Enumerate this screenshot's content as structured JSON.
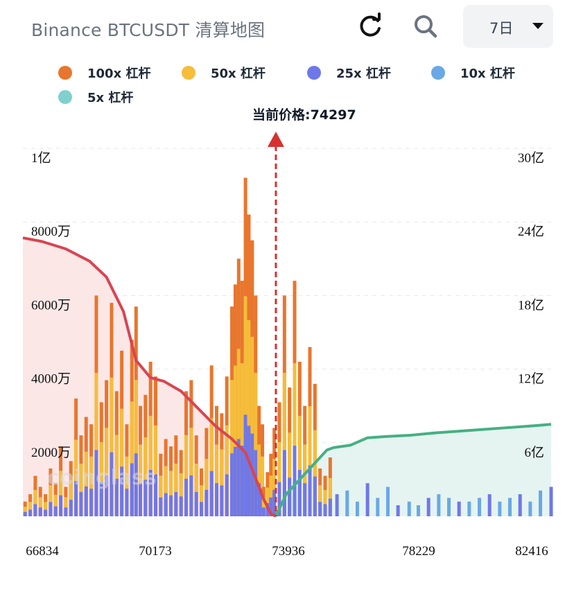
{
  "header": {
    "title": "Binance BTCUSDT 清算地图",
    "refresh_icon": "refresh-icon",
    "search_icon": "search-icon",
    "range_value": "7日"
  },
  "legend": [
    {
      "label": "100x 杠杆",
      "color": "#e8762d"
    },
    {
      "label": "50x 杠杆",
      "color": "#f5bd3a"
    },
    {
      "label": "25x 杠杆",
      "color": "#6f78e8"
    },
    {
      "label": "10x 杠杆",
      "color": "#6aa8e6"
    },
    {
      "label": "5x 杠杆",
      "color": "#7fd0cf"
    }
  ],
  "current_price_label": "当前价格:74297",
  "watermark": "coinglass",
  "chart_data": {
    "type": "bar",
    "xlim": [
      66834,
      82416
    ],
    "x_ticks": [
      "66834",
      "70173",
      "73936",
      "78229",
      "82416"
    ],
    "left_axis": {
      "label_ticks": [
        "1亿",
        "8000万",
        "6000万",
        "4000万",
        "2000万"
      ],
      "values": [
        100000000,
        80000000,
        60000000,
        40000000,
        20000000
      ],
      "ylim": [
        0,
        100000000
      ]
    },
    "right_axis": {
      "label_ticks": [
        "30亿",
        "24亿",
        "18亿",
        "12亿",
        "6亿"
      ],
      "values": [
        3000000000,
        2400000000,
        1800000000,
        1200000000,
        600000000
      ],
      "ylim": [
        0,
        3000000000
      ]
    },
    "current_price": 74297,
    "bars_top_color": "#e8762d",
    "bars_mid_color": "#f5bd3a",
    "bars_low_color": "#6f78e8",
    "bars_right_color": "#6aa8e6",
    "long_cumulative": {
      "name": "",
      "color": "#d94450",
      "x": [
        66834,
        67400,
        68100,
        68800,
        69300,
        69800,
        70173,
        70600,
        71000,
        71500,
        72000,
        72500,
        73000,
        73400,
        73700,
        73936,
        74150,
        74297
      ],
      "y": [
        2270000000,
        2240000000,
        2180000000,
        2080000000,
        1950000000,
        1670000000,
        1270000000,
        1130000000,
        1100000000,
        1020000000,
        880000000,
        740000000,
        630000000,
        520000000,
        310000000,
        140000000,
        20000000,
        0
      ]
    },
    "short_cumulative": {
      "name": "",
      "color": "#45b083",
      "x": [
        74297,
        74600,
        75000,
        75300,
        75800,
        76000,
        76500,
        77000,
        77500,
        78229,
        79000,
        80000,
        81000,
        82000,
        82416
      ],
      "y": [
        0,
        180000000,
        300000000,
        390000000,
        540000000,
        560000000,
        580000000,
        640000000,
        650000000,
        660000000,
        680000000,
        700000000,
        720000000,
        740000000,
        750000000
      ]
    },
    "bars": {
      "x": [
        66900,
        67050,
        67200,
        67350,
        67500,
        67650,
        67800,
        67950,
        68100,
        68250,
        68400,
        68550,
        68700,
        68850,
        69000,
        69150,
        69300,
        69450,
        69600,
        69750,
        69900,
        70050,
        70173,
        70300,
        70450,
        70600,
        70750,
        70900,
        71050,
        71200,
        71350,
        71500,
        71650,
        71800,
        71950,
        72100,
        72250,
        72400,
        72550,
        72700,
        72850,
        73000,
        73100,
        73200,
        73300,
        73400,
        73500,
        73600,
        73700,
        73800,
        73900,
        73936,
        74050,
        74150,
        74250,
        74400,
        74550,
        74700,
        74850,
        75000,
        75150,
        75300,
        75450,
        75600,
        75750,
        75900,
        76100,
        76400,
        76700,
        77000,
        77300,
        77600,
        77900,
        78229,
        78500,
        78800,
        79100,
        79400,
        79700,
        80000,
        80300,
        80600,
        80900,
        81200,
        81500,
        81800,
        82100,
        82416
      ],
      "values": [
        4000000,
        6000000,
        11000000,
        8000000,
        6000000,
        13000000,
        9000000,
        19000000,
        8000000,
        15000000,
        32000000,
        22000000,
        27000000,
        25000000,
        60000000,
        31000000,
        37000000,
        58000000,
        34000000,
        45000000,
        25000000,
        48000000,
        57000000,
        30000000,
        33000000,
        42000000,
        38000000,
        17000000,
        21000000,
        19000000,
        22000000,
        18000000,
        34000000,
        37000000,
        22000000,
        13000000,
        24000000,
        41000000,
        30000000,
        28000000,
        38000000,
        57000000,
        63000000,
        70000000,
        64000000,
        92000000,
        82000000,
        75000000,
        60000000,
        30000000,
        25000000,
        8000000,
        12000000,
        17000000,
        24000000,
        31000000,
        60000000,
        35000000,
        64000000,
        42000000,
        30000000,
        46000000,
        36000000,
        13000000,
        11000000,
        16000000,
        6000000,
        7000000,
        4000000,
        9000000,
        5000000,
        8000000,
        3000000,
        4000000,
        3000000,
        5000000,
        6000000,
        5000000,
        4000000,
        4000000,
        5000000,
        6000000,
        4000000,
        5000000,
        6000000,
        4000000,
        7000000,
        8000000
      ]
    }
  }
}
